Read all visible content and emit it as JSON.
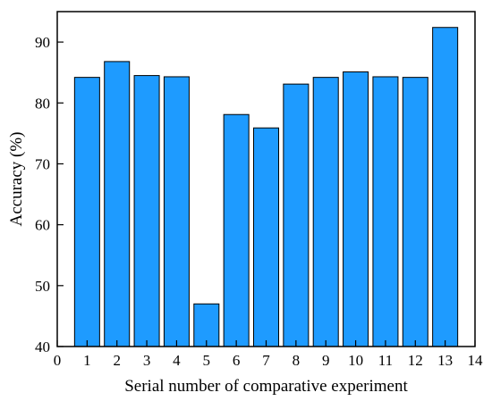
{
  "chart_data": {
    "type": "bar",
    "title": "",
    "xlabel": "Serial number of comparative experiment",
    "ylabel": "Accuracy (%)",
    "x": [
      1,
      2,
      3,
      4,
      5,
      6,
      7,
      8,
      9,
      10,
      11,
      12,
      13
    ],
    "values": [
      84.2,
      86.8,
      84.5,
      84.3,
      47.0,
      78.1,
      75.9,
      83.1,
      84.2,
      85.1,
      84.3,
      84.2,
      92.4
    ],
    "xlim": [
      0,
      14
    ],
    "ylim": [
      40,
      95
    ],
    "xticks": [
      0,
      1,
      2,
      3,
      4,
      5,
      6,
      7,
      8,
      9,
      10,
      11,
      12,
      13,
      14
    ],
    "yticks": [
      40,
      50,
      60,
      70,
      80,
      90
    ],
    "grid": false,
    "legend": "none",
    "colors": {
      "bar_fill": "#1e9bff",
      "bar_stroke": "#000000",
      "axis": "#000000"
    }
  }
}
